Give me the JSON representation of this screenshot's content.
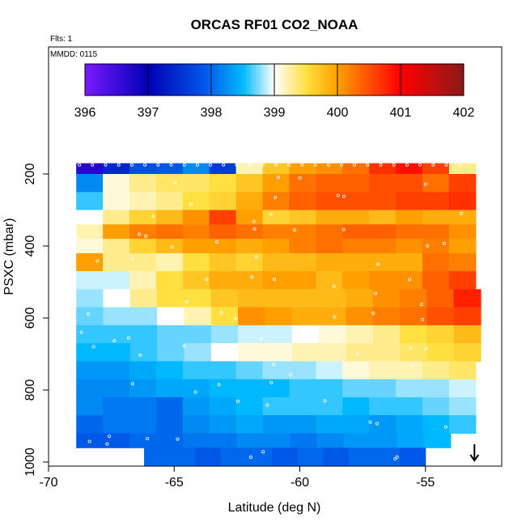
{
  "chart_data": {
    "type": "heatmap",
    "title": "ORCAS RF01 CO2_NOAA",
    "annotations": [
      "Flts: 1",
      "MMDD: 0115"
    ],
    "xlabel": "Latitude (deg N)",
    "ylabel": "PSXC (mbar)",
    "xlim": [
      -70,
      -52
    ],
    "ylim": [
      1010,
      100
    ],
    "x_ticks": [
      -70,
      -65,
      -60,
      -55
    ],
    "y_ticks": [
      200,
      400,
      600,
      800,
      1000
    ],
    "colorbar": {
      "min": 396,
      "max": 402,
      "ticks": [
        396,
        397,
        398,
        399,
        400,
        401,
        402
      ],
      "colors": [
        "#7a1aff",
        "#0000b4",
        "#0058e8",
        "#00b8ff",
        "#ffffff",
        "#ffe040",
        "#ffa000",
        "#ff0000",
        "#8b1a1a"
      ]
    },
    "marker_arrow": {
      "x": -53.05,
      "y": 1000
    },
    "layers": [
      {
        "p_top": 170,
        "p_bot": 200,
        "x0": -68.9,
        "x1": -53.0,
        "values": [
          396.7,
          397.4,
          397.8,
          397.9,
          398.2,
          397.6,
          399.2,
          399.7,
          400.0,
          400.1,
          400.3,
          400.7,
          400.9,
          400.6,
          399.3
        ]
      },
      {
        "p_top": 200,
        "p_bot": 250,
        "x0": -68.9,
        "x1": -53.0,
        "values": [
          398.2,
          399.1,
          399.3,
          399.4,
          399.4,
          399.5,
          399.7,
          400.0,
          400.3,
          400.4,
          400.4,
          400.5,
          400.5,
          400.3,
          400.6
        ]
      },
      {
        "p_top": 250,
        "p_bot": 300,
        "x0": -68.9,
        "x1": -53.0,
        "values": [
          398.6,
          399.1,
          399.2,
          399.3,
          399.5,
          399.6,
          399.9,
          400.2,
          400.4,
          400.5,
          400.5,
          400.5,
          400.6,
          400.6,
          400.7
        ]
      },
      {
        "p_top": 300,
        "p_bot": 340,
        "x0": -68.9,
        "x1": -53.0,
        "values": [
          399.0,
          399.3,
          399.6,
          399.8,
          400.1,
          400.6,
          400.0,
          399.6,
          399.7,
          399.9,
          399.9,
          399.8,
          400.0,
          399.9,
          399.9
        ]
      },
      {
        "p_top": 340,
        "p_bot": 380,
        "x0": -68.9,
        "x1": -53.0,
        "values": [
          399.2,
          400.0,
          400.2,
          400.3,
          400.2,
          400.4,
          400.3,
          400.2,
          400.2,
          400.3,
          400.4,
          400.4,
          400.3,
          400.3,
          400.1
        ]
      },
      {
        "p_top": 380,
        "p_bot": 420,
        "x0": -68.9,
        "x1": -53.0,
        "values": [
          399.1,
          399.3,
          399.6,
          399.8,
          400.0,
          400.0,
          399.9,
          400.0,
          400.2,
          400.3,
          400.2,
          400.2,
          400.1,
          400.2,
          400.0
        ]
      },
      {
        "p_top": 420,
        "p_bot": 470,
        "x0": -68.9,
        "x1": -53.0,
        "values": [
          400.0,
          399.3,
          399.3,
          399.2,
          399.5,
          399.7,
          399.6,
          399.8,
          399.8,
          399.9,
          399.9,
          399.9,
          399.9,
          400.3,
          400.2
        ]
      },
      {
        "p_top": 470,
        "p_bot": 520,
        "x0": -68.9,
        "x1": -53.0,
        "values": [
          398.9,
          398.9,
          399.2,
          399.5,
          399.7,
          399.9,
          399.9,
          400.0,
          400.0,
          399.8,
          400.0,
          400.1,
          400.1,
          400.4,
          400.6
        ]
      },
      {
        "p_top": 520,
        "p_bot": 570,
        "x0": -68.9,
        "x1": -52.8,
        "values": [
          398.8,
          399.0,
          399.3,
          399.5,
          399.5,
          399.7,
          399.8,
          399.8,
          399.8,
          399.8,
          399.9,
          400.1,
          400.2,
          400.4,
          400.8
        ]
      },
      {
        "p_top": 570,
        "p_bot": 620,
        "x0": -68.9,
        "x1": -52.8,
        "values": [
          398.7,
          398.8,
          398.8,
          399.0,
          399.2,
          399.5,
          400.1,
          400.0,
          399.9,
          399.9,
          400.1,
          400.2,
          400.3,
          400.5,
          400.6
        ]
      },
      {
        "p_top": 620,
        "p_bot": 670,
        "x0": -68.9,
        "x1": -52.8,
        "values": [
          398.6,
          398.6,
          398.6,
          398.7,
          398.7,
          398.8,
          398.9,
          398.9,
          399.0,
          399.1,
          399.2,
          399.3,
          399.5,
          399.6,
          399.8
        ]
      },
      {
        "p_top": 670,
        "p_bot": 720,
        "x0": -68.9,
        "x1": -52.8,
        "values": [
          398.5,
          398.5,
          398.6,
          398.7,
          398.8,
          399.0,
          399.1,
          399.1,
          399.2,
          399.2,
          399.3,
          399.3,
          399.4,
          399.5,
          399.6
        ]
      },
      {
        "p_top": 720,
        "p_bot": 770,
        "x0": -68.9,
        "x1": -53.0,
        "values": [
          398.3,
          398.3,
          398.4,
          398.5,
          398.6,
          398.6,
          398.7,
          398.8,
          398.8,
          398.9,
          399.1,
          399.2,
          399.2,
          399.3,
          399.4
        ]
      },
      {
        "p_top": 770,
        "p_bot": 820,
        "x0": -68.9,
        "x1": -53.0,
        "values": [
          398.2,
          398.2,
          398.3,
          398.4,
          398.4,
          398.5,
          398.5,
          398.5,
          398.6,
          398.6,
          398.7,
          398.7,
          398.8,
          398.8,
          398.9
        ]
      },
      {
        "p_top": 820,
        "p_bot": 870,
        "x0": -68.9,
        "x1": -53.0,
        "values": [
          398.2,
          398.1,
          398.1,
          398.0,
          398.3,
          398.4,
          398.5,
          398.6,
          398.6,
          398.6,
          398.5,
          398.6,
          398.6,
          398.7,
          398.8
        ]
      },
      {
        "p_top": 870,
        "p_bot": 920,
        "x0": -68.9,
        "x1": -53.0,
        "values": [
          398.0,
          398.1,
          398.1,
          398.0,
          398.2,
          398.3,
          398.4,
          398.3,
          398.3,
          398.4,
          398.4,
          398.3,
          398.4,
          398.5,
          398.6
        ]
      },
      {
        "p_top": 920,
        "p_bot": 960,
        "x0": -68.9,
        "x1": -54.0,
        "values": [
          397.9,
          397.9,
          398.0,
          398.0,
          398.1,
          398.1,
          398.2,
          398.2,
          398.1,
          398.2,
          398.3,
          398.3,
          398.4,
          398.5
        ]
      },
      {
        "p_top": 960,
        "p_bot": 1010,
        "x0": -66.2,
        "x1": -55.0,
        "values": [
          398.0,
          398.0,
          397.9,
          398.0,
          398.0,
          397.9,
          398.0,
          397.9,
          398.0,
          398.0,
          397.9
        ]
      }
    ]
  }
}
